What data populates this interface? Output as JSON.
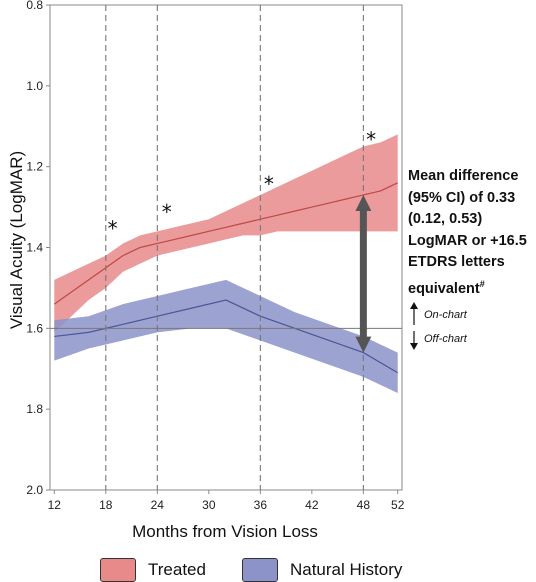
{
  "chart_data": {
    "type": "line",
    "xlabel": "Months from Vision Loss",
    "ylabel": "Visual Acuity (LogMAR)",
    "x_ticks": [
      12,
      18,
      24,
      30,
      36,
      42,
      48,
      52
    ],
    "y_ticks": [
      "0.8",
      "1.0",
      "1.2",
      "1.4",
      "1.6",
      "1.8",
      "2.0"
    ],
    "xlim": [
      11.5,
      52.5
    ],
    "ylim": [
      0.8,
      2.0
    ],
    "y_inverted": true,
    "grid": false,
    "reference_line_y": 1.6,
    "vertical_dashed_lines_x": [
      18,
      24,
      36,
      48
    ],
    "series": [
      {
        "name": "Treated",
        "color": "#e07070",
        "fill_color": "#e88a8a",
        "x": [
          12,
          14,
          16,
          18,
          20,
          22,
          24,
          26,
          28,
          30,
          32,
          34,
          36,
          38,
          40,
          42,
          44,
          46,
          48,
          50,
          52
        ],
        "y": [
          1.54,
          1.51,
          1.48,
          1.45,
          1.42,
          1.4,
          1.39,
          1.38,
          1.37,
          1.36,
          1.35,
          1.34,
          1.33,
          1.32,
          1.31,
          1.3,
          1.29,
          1.28,
          1.27,
          1.26,
          1.24
        ],
        "ci_low": [
          1.48,
          1.46,
          1.44,
          1.42,
          1.39,
          1.37,
          1.36,
          1.35,
          1.34,
          1.33,
          1.31,
          1.29,
          1.27,
          1.25,
          1.23,
          1.21,
          1.19,
          1.17,
          1.15,
          1.14,
          1.12
        ],
        "ci_high": [
          1.61,
          1.57,
          1.53,
          1.5,
          1.46,
          1.44,
          1.42,
          1.41,
          1.4,
          1.39,
          1.38,
          1.37,
          1.37,
          1.36,
          1.36,
          1.36,
          1.36,
          1.36,
          1.36,
          1.36,
          1.36
        ]
      },
      {
        "name": "Natural History",
        "color": "#6b76b8",
        "fill_color": "#8c93c9",
        "x": [
          12,
          16,
          20,
          24,
          28,
          32,
          36,
          40,
          44,
          48,
          52
        ],
        "y": [
          1.62,
          1.61,
          1.59,
          1.57,
          1.55,
          1.53,
          1.57,
          1.6,
          1.63,
          1.66,
          1.71
        ],
        "ci_low": [
          1.58,
          1.57,
          1.54,
          1.52,
          1.5,
          1.48,
          1.52,
          1.56,
          1.59,
          1.62,
          1.66
        ],
        "ci_high": [
          1.68,
          1.65,
          1.63,
          1.61,
          1.6,
          1.6,
          1.63,
          1.66,
          1.69,
          1.72,
          1.76
        ]
      }
    ],
    "significance_markers": [
      {
        "x": 18.8,
        "y": 1.37,
        "label": "*"
      },
      {
        "x": 25.1,
        "y": 1.33,
        "label": "*"
      },
      {
        "x": 37.0,
        "y": 1.26,
        "label": "*"
      },
      {
        "x": 48.9,
        "y": 1.15,
        "label": "*"
      }
    ],
    "difference_arrow": {
      "x": 48,
      "y_from": 1.27,
      "y_to": 1.66
    },
    "annotation": {
      "lines": [
        "Mean difference",
        "(95% CI) of 0.33",
        "(0.12, 0.53)",
        "LogMAR or +16.5",
        "ETDRS letters"
      ],
      "last_line": "equivalent",
      "superscript": "#"
    },
    "on_chart_label": "On-chart",
    "off_chart_label": "Off-chart",
    "legend": [
      {
        "name": "Treated",
        "color": "#e88a8a"
      },
      {
        "name": "Natural History",
        "color": "#8c93c9"
      }
    ],
    "legend_position": "bottom"
  }
}
